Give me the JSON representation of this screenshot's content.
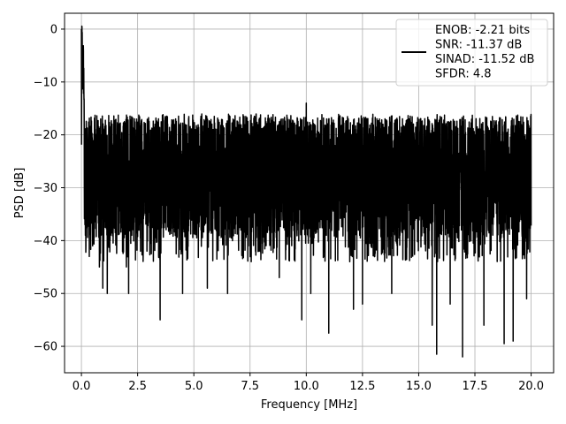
{
  "chart_data": {
    "type": "line",
    "title": "",
    "xlabel": "Frequency [MHz]",
    "ylabel": "PSD [dB]",
    "xlim": [
      -0.75,
      21.0
    ],
    "ylim": [
      -65.0,
      3.0
    ],
    "xticks": [
      0.0,
      2.5,
      5.0,
      7.5,
      10.0,
      12.5,
      15.0,
      17.5,
      20.0
    ],
    "xtick_labels": [
      "0.0",
      "2.5",
      "5.0",
      "7.5",
      "10.0",
      "12.5",
      "15.0",
      "17.5",
      "20.0"
    ],
    "yticks": [
      0,
      -10,
      -20,
      -30,
      -40,
      -50,
      -60
    ],
    "ytick_labels": [
      "0",
      "−10",
      "−20",
      "−30",
      "−40",
      "−50",
      "−60"
    ],
    "grid": true,
    "legend_position": "top-right",
    "legend_lines": [
      "ENOB: -2.21 bits",
      "SNR: -11.37 dB",
      "SINAD: -11.52 dB",
      "SFDR: 4.8"
    ],
    "series": [
      {
        "color": "#000000",
        "description": "noise-like PSD spectrum, mostly between about -40 and -18 dB",
        "x": [
          0.0,
          0.02,
          0.05,
          0.08,
          0.12,
          0.2,
          0.3,
          0.5,
          1.0,
          2.0,
          3.0,
          4.0,
          5.0,
          6.0,
          7.0,
          8.0,
          9.0,
          10.0,
          11.0,
          12.0,
          13.0,
          14.0,
          15.0,
          16.0,
          17.0,
          18.0,
          19.0,
          20.0
        ],
        "y": [
          -26,
          0,
          -10,
          -6,
          -12,
          -16,
          -22,
          -25,
          -27,
          -28,
          -28,
          -28,
          -28,
          -28,
          -28,
          -28,
          -28,
          -28,
          -28,
          -28,
          -28,
          -28,
          -28,
          -28,
          -28,
          -28,
          -28,
          -28
        ],
        "peaks": [
          {
            "x": 0.0,
            "y": 0.0
          },
          {
            "x": 0.03,
            "y": -5.0
          },
          {
            "x": 0.06,
            "y": -9.0
          },
          {
            "x": 10.0,
            "y": -14.0
          }
        ],
        "dips": [
          {
            "x": 0.2,
            "y": -41.0
          },
          {
            "x": 0.35,
            "y": -43.0
          },
          {
            "x": 0.8,
            "y": -45.0
          },
          {
            "x": 0.95,
            "y": -49.0
          },
          {
            "x": 1.15,
            "y": -50.0
          },
          {
            "x": 2.0,
            "y": -45.0
          },
          {
            "x": 2.1,
            "y": -50.0
          },
          {
            "x": 3.5,
            "y": -55.0
          },
          {
            "x": 4.5,
            "y": -50.0
          },
          {
            "x": 5.6,
            "y": -49.0
          },
          {
            "x": 6.5,
            "y": -50.0
          },
          {
            "x": 8.8,
            "y": -47.0
          },
          {
            "x": 9.8,
            "y": -55.0
          },
          {
            "x": 10.2,
            "y": -50.0
          },
          {
            "x": 11.0,
            "y": -57.5
          },
          {
            "x": 12.1,
            "y": -53.0
          },
          {
            "x": 12.5,
            "y": -52.0
          },
          {
            "x": 13.8,
            "y": -50.0
          },
          {
            "x": 15.6,
            "y": -56.0
          },
          {
            "x": 15.8,
            "y": -61.5
          },
          {
            "x": 16.4,
            "y": -52.0
          },
          {
            "x": 16.95,
            "y": -62.0
          },
          {
            "x": 17.9,
            "y": -56.0
          },
          {
            "x": 18.8,
            "y": -59.5
          },
          {
            "x": 19.2,
            "y": -59.0
          },
          {
            "x": 19.8,
            "y": -51.0
          }
        ],
        "noise_band": {
          "low": -40.0,
          "high": -18.0,
          "median": -28.0
        }
      }
    ]
  }
}
